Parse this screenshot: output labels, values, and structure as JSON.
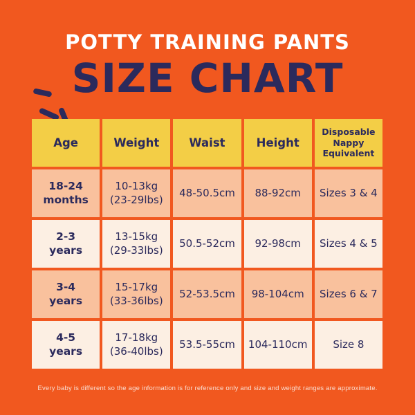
{
  "header": {
    "subtitle": "POTTY TRAINING PANTS",
    "title": "SIZE CHART"
  },
  "colors": {
    "background_orange": "#F1581F",
    "header_yellow": "#F3CE46",
    "text_navy": "#2B2A5C",
    "row_salmon": "#F9C19D",
    "row_cream": "#FCEFE3",
    "title_white": "#FFFFFF",
    "footnote_cream": "#F9DFD3"
  },
  "table": {
    "headers": [
      "Age",
      "Weight",
      "Waist",
      "Height",
      "Disposable Nappy Equivalent"
    ],
    "rows": [
      {
        "age_1": "18-24",
        "age_2": "months",
        "weight_1": "10-13kg",
        "weight_2": "(23-29lbs)",
        "waist": "48-50.5cm",
        "height": "88-92cm",
        "nappy": "Sizes 3 & 4"
      },
      {
        "age_1": "2-3",
        "age_2": "years",
        "weight_1": "13-15kg",
        "weight_2": "(29-33lbs)",
        "waist": "50.5-52cm",
        "height": "92-98cm",
        "nappy": "Sizes 4 & 5"
      },
      {
        "age_1": "3-4",
        "age_2": "years",
        "weight_1": "15-17kg",
        "weight_2": "(33-36lbs)",
        "waist": "52-53.5cm",
        "height": "98-104cm",
        "nappy": "Sizes 6 & 7"
      },
      {
        "age_1": "4-5",
        "age_2": "years",
        "weight_1": "17-18kg",
        "weight_2": "(36-40lbs)",
        "waist": "53.5-55cm",
        "height": "104-110cm",
        "nappy": "Size 8"
      }
    ]
  },
  "footer": {
    "note": "Every baby is different so the age information is for reference only and size and weight ranges are approximate."
  }
}
